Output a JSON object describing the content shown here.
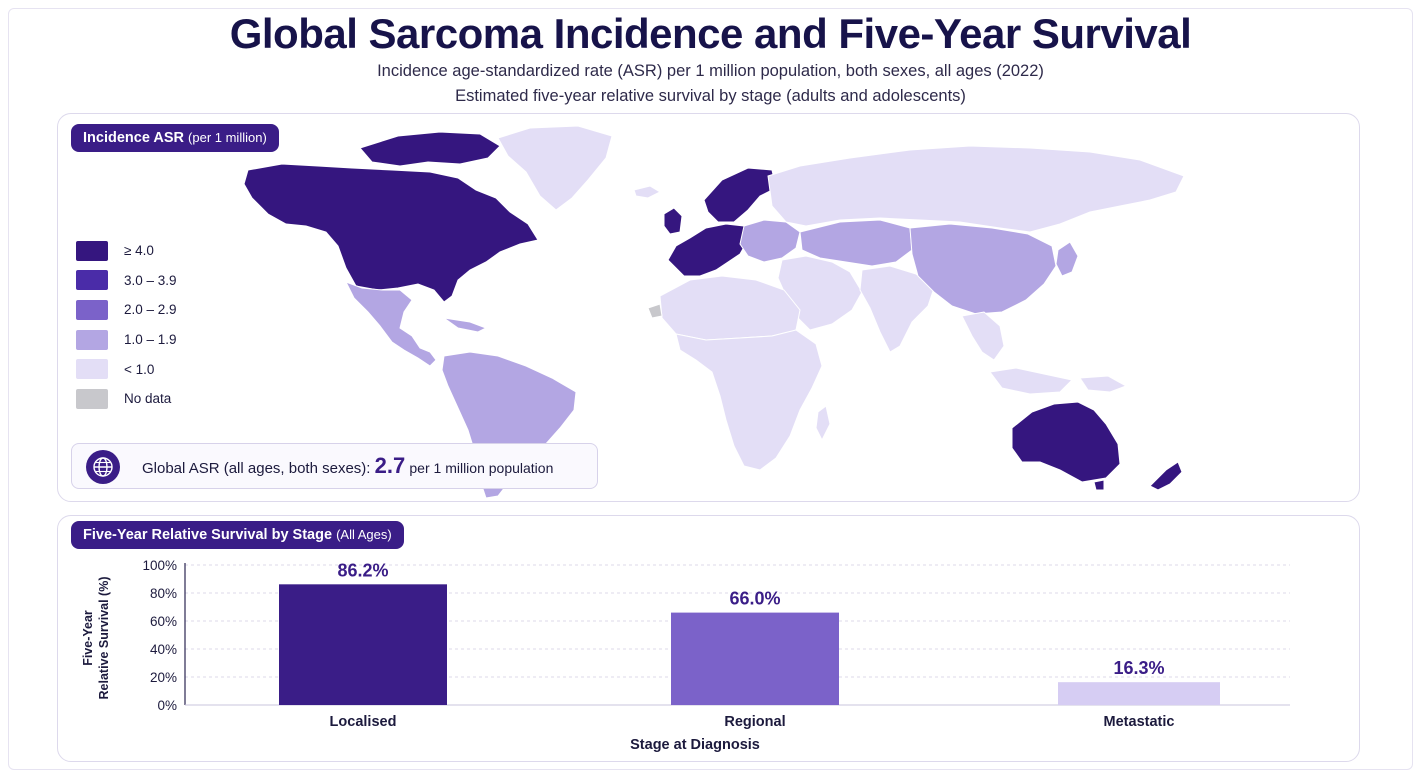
{
  "header": {
    "title": "Global Sarcoma Incidence and Five-Year Survival",
    "subtitle_1": "Incidence age-standardized rate (ASR) per 1 million population, both sexes, all ages (2022)",
    "subtitle_2": "Estimated five-year relative survival by stage (adults and adolescents)"
  },
  "map_panel": {
    "badge_main": "Incidence ASR",
    "badge_note": "(per 1 million)",
    "legend": [
      {
        "label": "≥ 4.0",
        "color": "#35167f"
      },
      {
        "label": "3.0 – 3.9",
        "color": "#4a2ca8"
      },
      {
        "label": "2.0 – 2.9",
        "color": "#7b62c9"
      },
      {
        "label": "1.0 – 1.9",
        "color": "#b3a6e3"
      },
      {
        "label": "< 1.0",
        "color": "#e3def6"
      },
      {
        "label": "No data",
        "color": "#c8c8cc"
      }
    ],
    "global_icon": "globe-icon",
    "global_label": "Global ASR (all ages, both sexes):",
    "global_value": "2.7",
    "global_unit": "per 1 million population"
  },
  "chart_panel": {
    "badge_main": "Five-Year Relative Survival by Stage",
    "badge_note": "(All Ages)"
  },
  "chart_data": {
    "type": "bar",
    "title": "Five-Year Relative Survival by Stage (All Ages)",
    "xlabel": "Stage at Diagnosis",
    "ylabel": "Five-Year Relative Survival (%)",
    "ylabel_lines": [
      "Five-Year",
      "Relative Survival (%)"
    ],
    "categories": [
      "Localised",
      "Regional",
      "Metastatic"
    ],
    "values": [
      86.2,
      66.0,
      16.3
    ],
    "value_labels": [
      "86.2%",
      "66.0%",
      "16.3%"
    ],
    "colors": [
      "#3a1d87",
      "#7b62c9",
      "#d6cdf3"
    ],
    "yticks": [
      "0%",
      "20%",
      "40%",
      "60%",
      "80%",
      "100%"
    ],
    "ylim": [
      0,
      100
    ],
    "grid": true
  }
}
